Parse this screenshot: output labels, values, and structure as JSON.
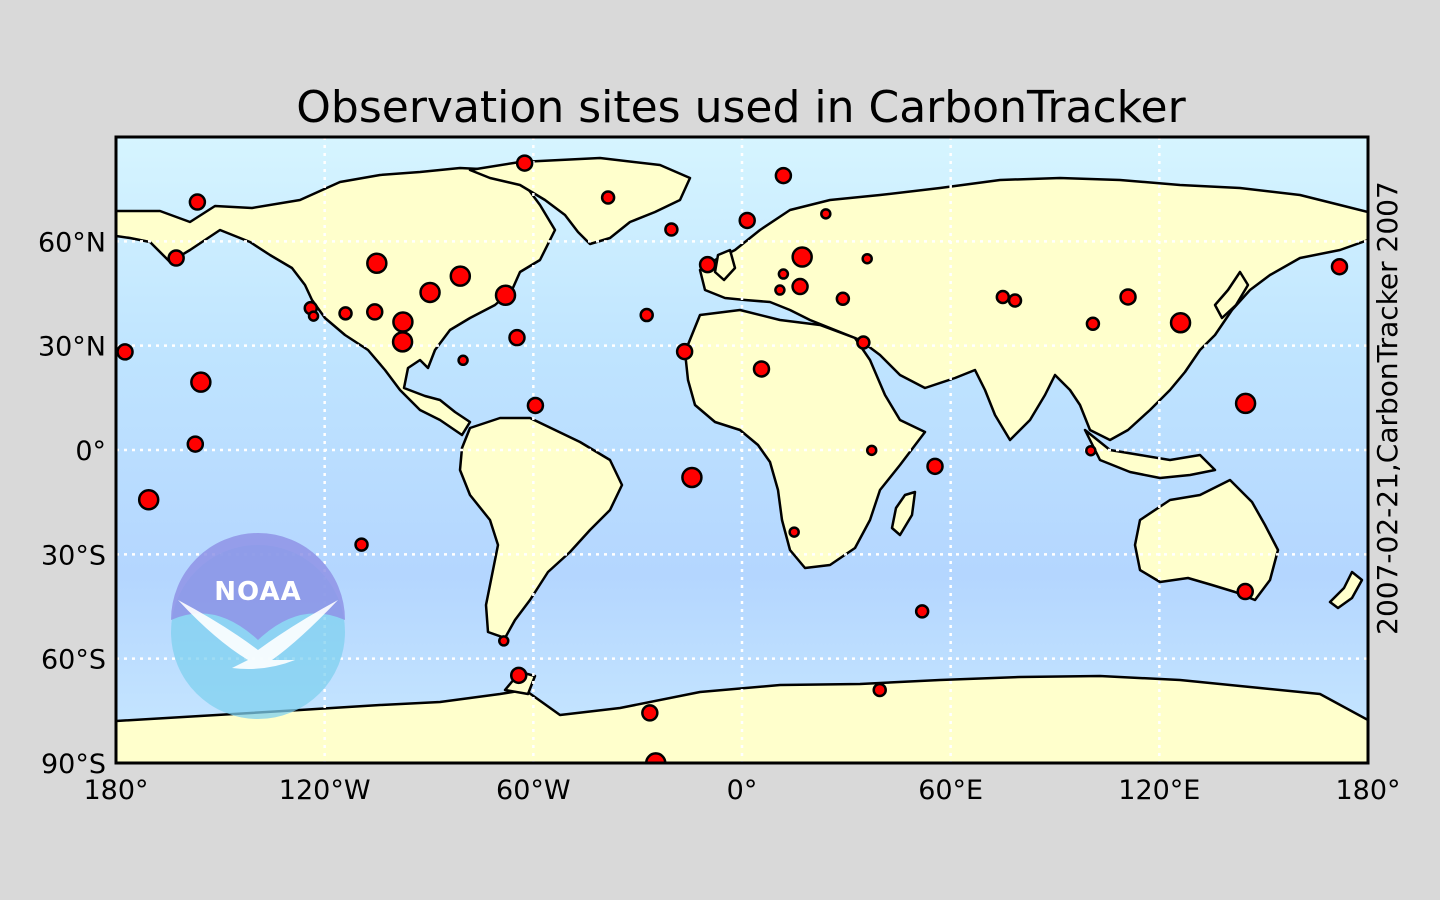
{
  "title": "Observation sites used in CarbonTracker",
  "side_label": "2007-02-21,CarbonTracker 2007",
  "logo": {
    "text": "NOAA",
    "icon": "noaa-logo-icon"
  },
  "colors": {
    "figure_background": "#d9d9d9",
    "ocean": "#b8dcff",
    "land": "#ffffcc",
    "marker_fill": "#ff0000",
    "marker_edge": "#000000",
    "grid": "#ffffff"
  },
  "chart_data": {
    "type": "scatter",
    "projection": "equirectangular",
    "xlim": [
      -180,
      180
    ],
    "ylim": [
      -90,
      90
    ],
    "grid": true,
    "x_ticks": [
      {
        "value": -180,
        "label": "180°"
      },
      {
        "value": -120,
        "label": "120°W"
      },
      {
        "value": -60,
        "label": "60°W"
      },
      {
        "value": 0,
        "label": "0°"
      },
      {
        "value": 60,
        "label": "60°E"
      },
      {
        "value": 120,
        "label": "120°E"
      },
      {
        "value": 180,
        "label": "180°"
      }
    ],
    "y_ticks": [
      {
        "value": 60,
        "label": "60°N"
      },
      {
        "value": 30,
        "label": "30°N"
      },
      {
        "value": 0,
        "label": "0°"
      },
      {
        "value": -30,
        "label": "30°S"
      },
      {
        "value": -60,
        "label": "60°S"
      },
      {
        "value": -90,
        "label": "90°S"
      }
    ],
    "sites": [
      {
        "lon": -62.5,
        "lat": 82.5,
        "size": "large"
      },
      {
        "lon": 11.9,
        "lat": 78.9,
        "size": "large"
      },
      {
        "lon": -156.6,
        "lat": 71.3,
        "size": "large"
      },
      {
        "lon": -38.5,
        "lat": 72.6,
        "size": "medium"
      },
      {
        "lon": 1.5,
        "lat": 66.0,
        "size": "large"
      },
      {
        "lon": 24.1,
        "lat": 67.9,
        "size": "small"
      },
      {
        "lon": -20.3,
        "lat": 63.4,
        "size": "medium"
      },
      {
        "lon": -162.7,
        "lat": 55.2,
        "size": "large"
      },
      {
        "lon": -105.0,
        "lat": 53.7,
        "size": "xlarge"
      },
      {
        "lon": -81.0,
        "lat": 50.0,
        "size": "xlarge"
      },
      {
        "lon": -89.7,
        "lat": 45.3,
        "size": "xlarge"
      },
      {
        "lon": -68.0,
        "lat": 44.5,
        "size": "xlarge"
      },
      {
        "lon": -124.0,
        "lat": 40.8,
        "size": "medium"
      },
      {
        "lon": -123.2,
        "lat": 38.5,
        "size": "small"
      },
      {
        "lon": -114.0,
        "lat": 39.3,
        "size": "medium"
      },
      {
        "lon": -105.6,
        "lat": 39.7,
        "size": "large"
      },
      {
        "lon": -97.5,
        "lat": 36.8,
        "size": "xlarge"
      },
      {
        "lon": -97.6,
        "lat": 31.1,
        "size": "xlarge"
      },
      {
        "lon": -80.2,
        "lat": 25.8,
        "size": "small"
      },
      {
        "lon": -64.7,
        "lat": 32.3,
        "size": "large"
      },
      {
        "lon": -27.4,
        "lat": 38.8,
        "size": "medium"
      },
      {
        "lon": -16.5,
        "lat": 28.3,
        "size": "large"
      },
      {
        "lon": -9.9,
        "lat": 53.3,
        "size": "large"
      },
      {
        "lon": 11.9,
        "lat": 50.6,
        "size": "small"
      },
      {
        "lon": 17.3,
        "lat": 55.5,
        "size": "xlarge"
      },
      {
        "lon": 16.7,
        "lat": 47.0,
        "size": "large"
      },
      {
        "lon": 10.9,
        "lat": 46.0,
        "size": "small"
      },
      {
        "lon": 29.0,
        "lat": 43.5,
        "size": "medium"
      },
      {
        "lon": 36.0,
        "lat": 55.0,
        "size": "small"
      },
      {
        "lon": 34.9,
        "lat": 30.9,
        "size": "medium"
      },
      {
        "lon": 5.6,
        "lat": 23.3,
        "size": "large"
      },
      {
        "lon": 75.0,
        "lat": 44.0,
        "size": "medium"
      },
      {
        "lon": 78.5,
        "lat": 43.0,
        "size": "medium"
      },
      {
        "lon": 111.0,
        "lat": 44.0,
        "size": "large"
      },
      {
        "lon": 100.9,
        "lat": 36.3,
        "size": "medium"
      },
      {
        "lon": 126.1,
        "lat": 36.6,
        "size": "xlarge"
      },
      {
        "lon": 171.8,
        "lat": 52.7,
        "size": "large"
      },
      {
        "lon": -177.4,
        "lat": 28.2,
        "size": "large"
      },
      {
        "lon": -155.6,
        "lat": 19.5,
        "size": "xlarge"
      },
      {
        "lon": -59.4,
        "lat": 12.8,
        "size": "large"
      },
      {
        "lon": 144.8,
        "lat": 13.4,
        "size": "xlarge"
      },
      {
        "lon": -157.2,
        "lat": 1.7,
        "size": "large"
      },
      {
        "lon": 37.3,
        "lat": -0.1,
        "size": "small"
      },
      {
        "lon": 100.3,
        "lat": -0.2,
        "size": "small"
      },
      {
        "lon": 55.5,
        "lat": -4.7,
        "size": "large"
      },
      {
        "lon": -14.4,
        "lat": -7.9,
        "size": "xlarge"
      },
      {
        "lon": -170.6,
        "lat": -14.3,
        "size": "xlarge"
      },
      {
        "lon": -109.4,
        "lat": -27.2,
        "size": "medium"
      },
      {
        "lon": 15.0,
        "lat": -23.6,
        "size": "small"
      },
      {
        "lon": 144.7,
        "lat": -40.7,
        "size": "large"
      },
      {
        "lon": 51.8,
        "lat": -46.4,
        "size": "medium"
      },
      {
        "lon": -68.5,
        "lat": -54.9,
        "size": "small"
      },
      {
        "lon": -64.2,
        "lat": -64.8,
        "size": "large"
      },
      {
        "lon": 39.6,
        "lat": -69.0,
        "size": "medium"
      },
      {
        "lon": -26.5,
        "lat": -75.6,
        "size": "large"
      },
      {
        "lon": -24.8,
        "lat": -89.98,
        "size": "xlarge"
      }
    ]
  }
}
